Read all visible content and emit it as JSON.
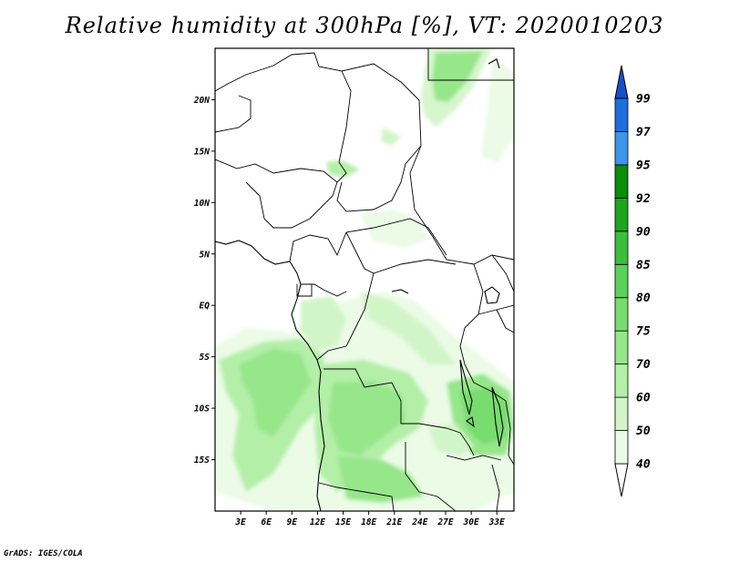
{
  "title": "Relative humidity at 300hPa [%], VT: 2020010203",
  "footer": "GrADS: IGES/COLA",
  "map": {
    "lon_range": [
      0,
      35
    ],
    "lat_range": [
      -20,
      25
    ],
    "lat_ticks": [
      "20N",
      "15N",
      "10N",
      "5N",
      "EQ",
      "5S",
      "10S",
      "15S"
    ],
    "lat_values": [
      20,
      15,
      10,
      5,
      0,
      -5,
      -10,
      -15
    ],
    "lon_ticks": [
      "3E",
      "6E",
      "9E",
      "12E",
      "15E",
      "18E",
      "21E",
      "24E",
      "27E",
      "30E",
      "33E"
    ],
    "lon_values": [
      3,
      6,
      9,
      12,
      15,
      18,
      21,
      24,
      27,
      30,
      33
    ]
  },
  "colorbar": {
    "levels": [
      "40",
      "50",
      "60",
      "70",
      "75",
      "80",
      "85",
      "90",
      "92",
      "95",
      "97",
      "99"
    ],
    "colors": [
      "#ebfbe6",
      "#d2f5c8",
      "#b4efa8",
      "#96e68a",
      "#78dc6e",
      "#5ad25a",
      "#3cbe3c",
      "#1ea51e",
      "#0b8c0b",
      "#3c96ea",
      "#1e6edc",
      "#1450c8"
    ],
    "low_color": "#ffffff",
    "high_color": "#1450c8"
  }
}
